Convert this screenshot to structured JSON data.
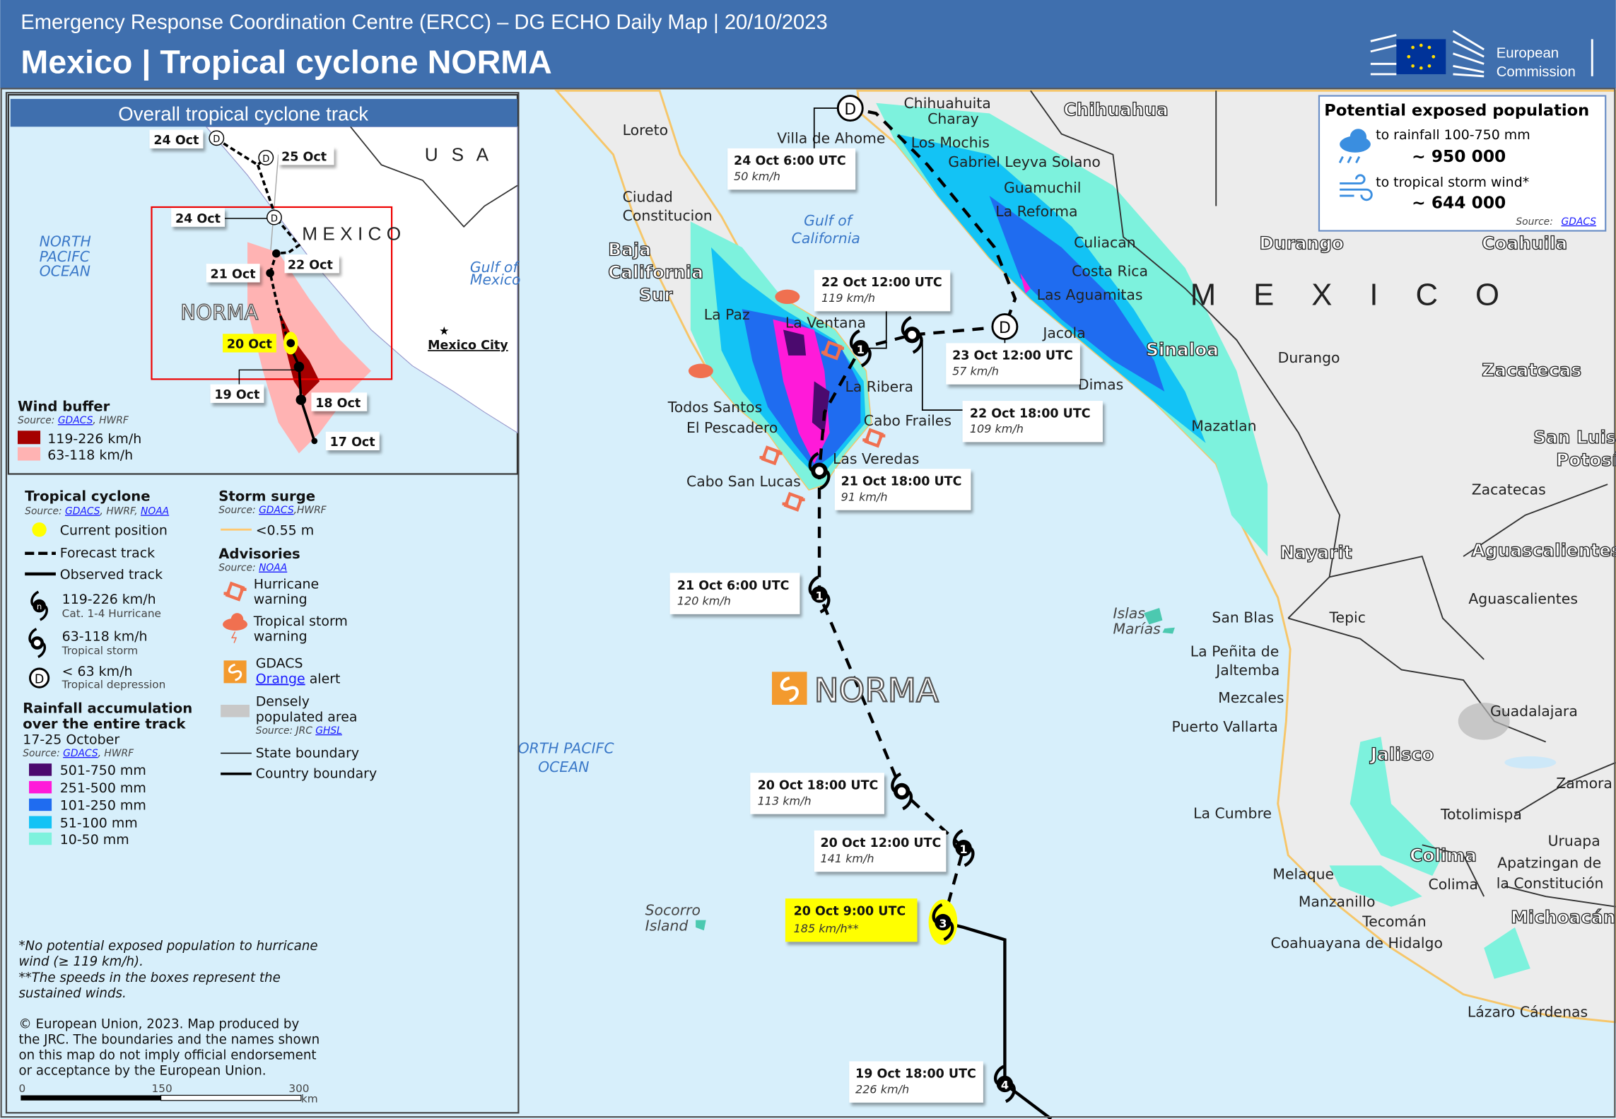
{
  "header": {
    "subtitle": "Emergency Response Coordination Centre (ERCC) – DG ECHO Daily Map | 20/10/2023",
    "title": "Mexico | Tropical cyclone NORMA",
    "logo_text": [
      "European",
      "Commission"
    ],
    "background_color": "#3f6fae"
  },
  "inset": {
    "title": "Overall tropical cyclone track",
    "labels": {
      "oct24_top": "24 Oct",
      "oct25": "25 Oct",
      "usa": "U S A",
      "ocean": [
        "NORTH",
        "PACIFC",
        "OCEAN"
      ],
      "oct24": "24 Oct",
      "mexico": "M E X I C O",
      "oct22": "22 Oct",
      "oct21": "21 Oct",
      "norma": "NORMA",
      "oct20": "20 Oct",
      "gulf": [
        "Gulf of",
        "Mexico"
      ],
      "mexico_city": "Mexico City",
      "oct19": "19 Oct",
      "oct18": "18 Oct",
      "oct17": "17 Oct"
    },
    "wind_buffer": {
      "title": "Wind buffer",
      "source_prefix": "Source: ",
      "source_link": "GDACS",
      "source_suffix": ", HWRF",
      "items": [
        {
          "label": "119-226 km/h",
          "color": "#a50000"
        },
        {
          "label": "63-118 km/h",
          "color": "#ffb3b3"
        }
      ]
    }
  },
  "legend": {
    "tropical_cyclone": {
      "title": "Tropical cyclone",
      "source_prefix": "Source: ",
      "source_link1": "GDACS",
      "source_mid": ", HWRF, ",
      "source_link2": "NOAA",
      "current_position": "Current position",
      "forecast_track": "Forecast track",
      "observed_track": "Observed track",
      "hurricane": {
        "label": "119-226 km/h",
        "sub": "Cat. 1-4 Hurricane"
      },
      "storm": {
        "label": "63-118 km/h",
        "sub": "Tropical storm"
      },
      "depression": {
        "label": "< 63 km/h",
        "sub": "Tropical depression",
        "symbol": "D"
      }
    },
    "rainfall": {
      "title": [
        "Rainfall accumulation",
        "over the entire track"
      ],
      "period": "17-25 October",
      "source_prefix": "Source: ",
      "source_link": "GDACS",
      "source_suffix": ", HWRF",
      "items": [
        {
          "label": "501-750 mm",
          "color": "#4b0a6e"
        },
        {
          "label": "251-500 mm",
          "color": "#ff1ad9"
        },
        {
          "label": "101-250 mm",
          "color": "#1f6cf0"
        },
        {
          "label": "51-100 mm",
          "color": "#13c3f5"
        },
        {
          "label": "10-50 mm",
          "color": "#7df2dd"
        }
      ]
    },
    "storm_surge": {
      "title": "Storm surge",
      "source_prefix": "Source: ",
      "source_link": "GDACS",
      "source_suffix": ",HWRF",
      "item": "<0.55 m",
      "color": "#ffc870"
    },
    "advisories": {
      "title": "Advisories",
      "source_prefix": "Source: ",
      "source_link": "NOAA",
      "hurricane_warning": [
        "Hurricane",
        "warning"
      ],
      "storm_warning": [
        "Tropical storm",
        "warning"
      ],
      "warning_color": "#f07050"
    },
    "gdacs": {
      "line1": "GDACS",
      "link": "Orange",
      "suffix": " alert",
      "color": "#f39a2e"
    },
    "populated": {
      "line1": "Densely",
      "line2": "populated area",
      "source_prefix": "Source: JRC ",
      "source_link": "GHSL"
    },
    "state_boundary": "State boundary",
    "country_boundary": "Country boundary"
  },
  "footnotes": {
    "note1": [
      "*No potential exposed population to hurricane",
      "wind (≥ 119 km/h)."
    ],
    "note2": [
      "**The speeds in the boxes represent the",
      "sustained winds."
    ],
    "copyright": [
      "© European Union, 2023. Map produced by",
      "the JRC. The boundaries and the names shown",
      "on this map do not imply official endorsement",
      "or acceptance by the European Union."
    ]
  },
  "scale_bar": {
    "ticks": [
      "0",
      "150",
      "300"
    ],
    "unit": "km"
  },
  "population_box": {
    "title": "Potential exposed population",
    "rainfall_label": "to rainfall 100-750 mm",
    "rainfall_value": "~ 950 000",
    "wind_label": "to tropical storm wind*",
    "wind_value": "~ 644 000",
    "source_prefix": "Source: ",
    "source_link": "GDACS",
    "icon_color": "#3a8ee0"
  },
  "track": {
    "name": "NORMA",
    "points": [
      {
        "time": "24 Oct 6:00 UTC",
        "speed": "50 km/h",
        "symbol": "D"
      },
      {
        "time": "22 Oct 12:00 UTC",
        "speed": "119 km/h",
        "symbol": "1"
      },
      {
        "time": "23 Oct 12:00 UTC",
        "speed": "57 km/h",
        "symbol": "D"
      },
      {
        "time": "22 Oct 18:00 UTC",
        "speed": "109 km/h",
        "symbol": ""
      },
      {
        "time": "21 Oct 18:00 UTC",
        "speed": "91 km/h",
        "symbol": ""
      },
      {
        "time": "21 Oct 6:00 UTC",
        "speed": "120 km/h",
        "symbol": "1"
      },
      {
        "time": "20 Oct 18:00 UTC",
        "speed": "113 km/h",
        "symbol": ""
      },
      {
        "time": "20 Oct 12:00 UTC",
        "speed": "141 km/h",
        "symbol": "1"
      },
      {
        "time": "20 Oct 9:00 UTC",
        "speed": "185 km/h**",
        "symbol": "3",
        "current": true
      },
      {
        "time": "19 Oct 18:00 UTC",
        "speed": "226 km/h",
        "symbol": "4"
      }
    ],
    "current_color": "#ffff00"
  },
  "map": {
    "country": "M E X I C O",
    "seas": {
      "gulf": [
        "Gulf of",
        "California"
      ],
      "ocean": [
        "NORTH PACIFC",
        "OCEAN"
      ]
    },
    "islands": {
      "marias": [
        "Islas",
        "Marías"
      ],
      "socorro": [
        "Socorro",
        "Island"
      ]
    },
    "states": {
      "baja": [
        "Baja",
        "California",
        "Sur"
      ],
      "chihuahua": "Chihuahua",
      "sinaloa": "Sinaloa",
      "durango": "Durango",
      "coahuila": "Coahuila",
      "zacatecas": "Zacatecas",
      "slp": [
        "San Luis",
        "Potosí"
      ],
      "nayarit": "Nayarit",
      "aguascalientes": "Aguascalientes",
      "jalisco": "Jalisco",
      "colima": "Colima",
      "michoacan": "Michoacán"
    },
    "places": [
      "Loreto",
      "Ciudad",
      "Constitucion",
      "La Paz",
      "La Ventana",
      "La Ribera",
      "Todos Santos",
      "El Pescadero",
      "Cabo Frailes",
      "Las Veredas",
      "Cabo San Lucas",
      "Villa de Ahome",
      "Chihuahuita",
      "Charay",
      "Los Mochis",
      "Gabriel Leyva Solano",
      "Guamuchil",
      "La Reforma",
      "Culiacan",
      "Costa Rica",
      "Las Aguamitas",
      "Jacola",
      "Dimas",
      "Mazatlan",
      "Durango",
      "Zacatecas",
      "Aguascalientes",
      "San Blas",
      "Tepic",
      "La Peñita de",
      "Jaltemba",
      "Mezcales",
      "Puerto Vallarta",
      "Guadalajara",
      "Zamora",
      "La Cumbre",
      "Totolimispa",
      "Uruapa",
      "Apatzingan de",
      "la Constitución",
      "Melaque",
      "Colima",
      "Manzanillo",
      "Tecomán",
      "Coahuayana de Hidalgo",
      "Lázaro Cárdenas"
    ]
  }
}
